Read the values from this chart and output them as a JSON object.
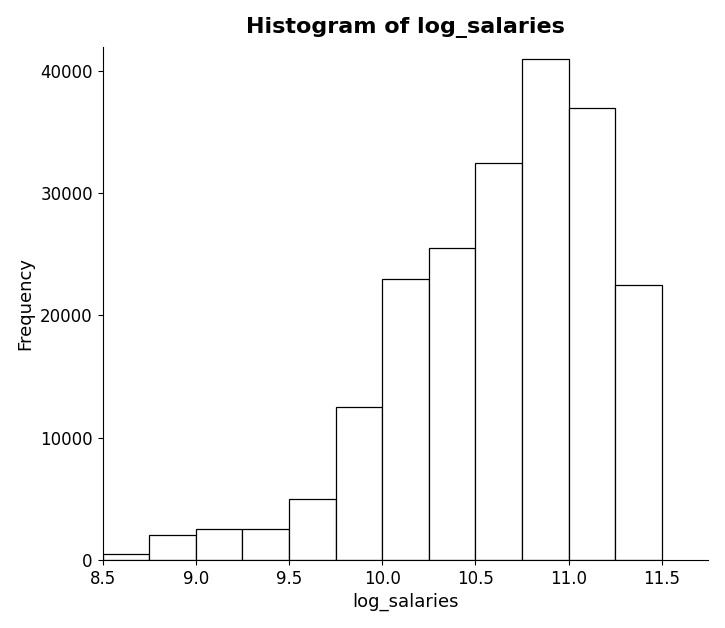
{
  "title": "Histogram of log_salaries",
  "xlabel": "log_salaries",
  "ylabel": "Frequency",
  "bar_left_edges": [
    8.5,
    8.75,
    9.0,
    9.25,
    9.5,
    9.75,
    10.0,
    10.25,
    10.5,
    10.75,
    11.0,
    11.25
  ],
  "bar_heights": [
    500,
    2000,
    2500,
    2500,
    5000,
    12500,
    23000,
    25500,
    32500,
    41000,
    37000,
    22500
  ],
  "bin_width": 0.25,
  "xlim": [
    8.5,
    11.75
  ],
  "ylim": [
    0,
    42000
  ],
  "xticks": [
    8.5,
    9.0,
    9.5,
    10.0,
    10.5,
    11.0,
    11.5
  ],
  "yticks": [
    0,
    10000,
    20000,
    30000,
    40000
  ],
  "bar_color": "#ffffff",
  "bar_edgecolor": "#000000",
  "background_color": "#ffffff",
  "title_fontsize": 16,
  "label_fontsize": 13,
  "tick_fontsize": 12
}
